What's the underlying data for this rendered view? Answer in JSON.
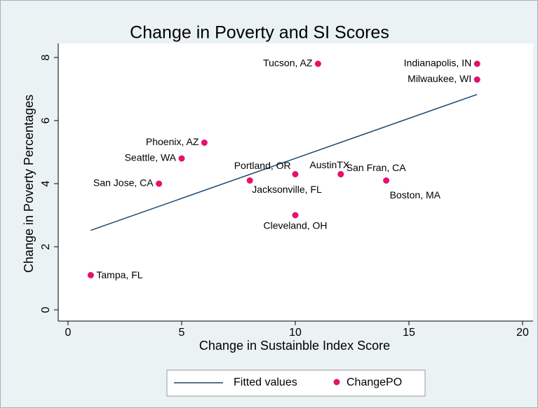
{
  "chart_data": {
    "type": "scatter",
    "title": "Change in Poverty and SI Scores",
    "x_label": "Change in Sustainble Index Score",
    "y_label": "Change in Poverty Percentages",
    "xlim": [
      0,
      20
    ],
    "xticks": [
      0,
      5,
      10,
      15,
      20
    ],
    "ylim": [
      0,
      8
    ],
    "yticks": [
      0,
      2,
      4,
      6,
      8
    ],
    "series": [
      {
        "name": "Fitted values",
        "type": "line",
        "color": "#1a476f",
        "x": [
          1,
          18
        ],
        "values": [
          2.52,
          6.83
        ]
      },
      {
        "name": "ChangePO",
        "type": "scatter",
        "color": "#e5116b",
        "x": [
          11,
          18,
          18,
          6,
          5,
          4,
          8,
          10,
          12,
          12,
          14,
          10,
          1
        ],
        "values": [
          7.8,
          7.8,
          7.3,
          5.3,
          4.8,
          4.0,
          4.1,
          4.3,
          4.3,
          4.3,
          4.1,
          3.0,
          1.1
        ],
        "labels": [
          "Tucson, AZ",
          "Indianapolis, IN",
          "Milwaukee, WI",
          "Phoenix, AZ",
          "Seattle, WA",
          "San Jose, CA",
          "Portland, OR",
          "Jacksonville, FL",
          "AustinTX",
          "San Fran, CA",
          "Boston, MA",
          "Cleveland, OH",
          "Tampa, FL"
        ]
      }
    ]
  }
}
